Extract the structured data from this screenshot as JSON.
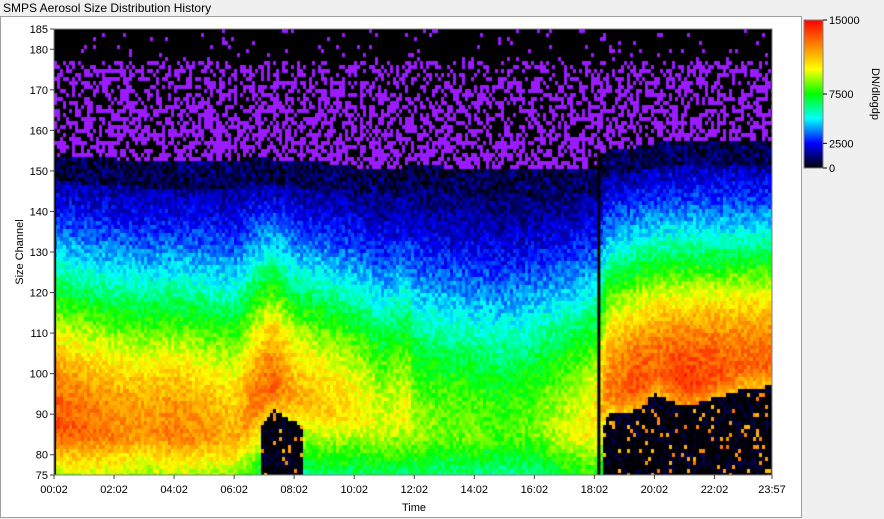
{
  "window": {
    "title": "SMPS Aerosol Size Distribution History"
  },
  "chart_data": {
    "type": "heatmap",
    "title": "",
    "xlabel": "Time",
    "ylabel": "Size Channel",
    "xlim": [
      "00:02",
      "23:57"
    ],
    "ylim": [
      75,
      185
    ],
    "x_ticks": [
      "00:02",
      "02:02",
      "04:02",
      "06:02",
      "08:02",
      "10:02",
      "12:02",
      "14:02",
      "16:02",
      "18:02",
      "20:02",
      "22:02",
      "23:57"
    ],
    "y_ticks": [
      75,
      80,
      90,
      100,
      110,
      120,
      130,
      140,
      150,
      160,
      170,
      180,
      185
    ],
    "colorbar": {
      "label": "DN/dlogdp",
      "range": [
        0,
        15000
      ],
      "ticks": [
        0,
        2500,
        7500,
        15000
      ],
      "colors": [
        "#000000",
        "#0000ff",
        "#00ffff",
        "#00ff00",
        "#ffff00",
        "#ff8000",
        "#ff0000"
      ]
    },
    "grid": false,
    "profile": {
      "times": [
        "00:02",
        "01:00",
        "02:02",
        "03:00",
        "04:02",
        "05:00",
        "06:02",
        "06:40",
        "07:20",
        "08:02",
        "09:00",
        "10:02",
        "11:00",
        "11:50",
        "12:02",
        "13:00",
        "14:02",
        "15:00",
        "16:02",
        "17:00",
        "18:02",
        "18:30",
        "19:30",
        "20:02",
        "21:00",
        "22:02",
        "23:00",
        "23:57"
      ],
      "peak_channel": [
        86,
        85,
        84,
        85,
        84,
        84,
        83,
        90,
        96,
        93,
        90,
        89,
        86,
        88,
        84,
        85,
        84,
        84,
        85,
        84,
        85,
        95,
        96,
        100,
        97,
        99,
        101,
        102
      ],
      "peak_value": [
        13500,
        13000,
        12500,
        12000,
        12500,
        12000,
        11500,
        12500,
        13000,
        11500,
        11000,
        10500,
        9500,
        10000,
        9000,
        8500,
        8500,
        8000,
        8500,
        9500,
        10500,
        12500,
        13500,
        13000,
        14000,
        13500,
        13000,
        13000
      ],
      "upper_edge_channel": [
        152,
        151,
        151,
        150,
        150,
        150,
        150,
        151,
        151,
        150,
        150,
        149,
        148,
        149,
        150,
        149,
        148,
        148,
        148,
        148,
        149,
        153,
        154,
        155,
        155,
        155,
        155,
        155
      ]
    },
    "gaps": [
      "00:02",
      "18:10"
    ]
  }
}
